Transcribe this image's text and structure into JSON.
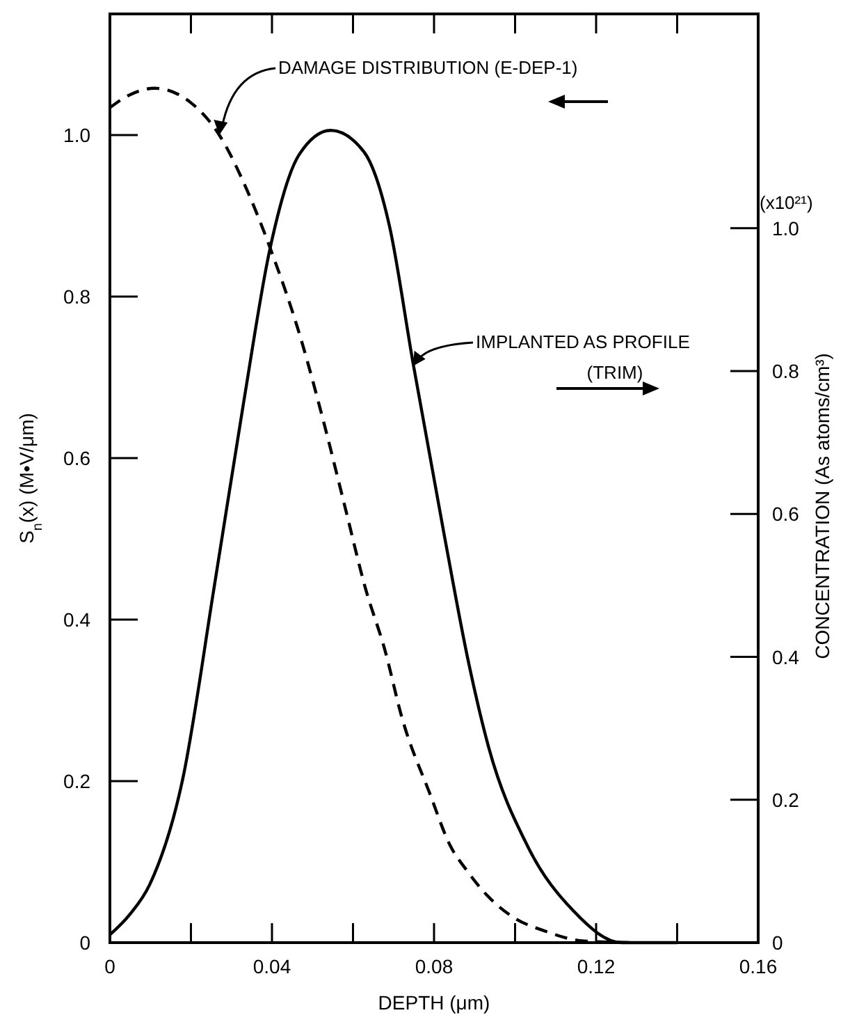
{
  "chart_data": {
    "type": "line",
    "xlabel": "DEPTH (μm)",
    "ylabel": "S$_{n}$(x) (M•V/μm)",
    "y2label": "CONCENTRATION (As atoms/cm³)",
    "annotations": [
      {
        "text": "DAMAGE DISTRIBUTION (E-DEP-1)",
        "x": 0.027,
        "y": 1.0
      },
      {
        "text": "IMPLANTED AS PROFILE",
        "x": 0.0748,
        "y": 0.714
      },
      "(TRIM)",
      "(x10²¹)"
    ],
    "xlim": [
      0,
      0.16
    ],
    "xticks": [
      0,
      {
        "value": 0.02,
        "label": null
      },
      0.04,
      {
        "value": 0.06,
        "label": null
      },
      0.08,
      {
        "value": 0.1,
        "label": null
      },
      0.12,
      {
        "value": 0.14,
        "label": null
      },
      0.16
    ],
    "ylim": [
      0,
      1.15
    ],
    "yticks": [
      0,
      0.2,
      0.4,
      0.6,
      0.8,
      {
        "value": 1,
        "label": "1.0"
      }
    ],
    "y2lim": [
      0,
      1.3
    ],
    "y2ticks": [
      0,
      0.2,
      0.4,
      0.6,
      0.8,
      {
        "value": 1,
        "label": "1.0"
      }
    ],
    "grid": false,
    "series": [
      {
        "color": "#000000",
        "line_style": "dashed",
        "x": [
          0,
          0.005,
          0.011,
          0.02,
          0.027,
          0.034,
          0.04,
          0.047,
          0.053,
          0.058,
          0.063,
          0.068,
          0.072,
          0.079,
          0.084,
          0.088,
          0.093,
          0.1,
          0.107,
          0.117,
          0.13
        ],
        "values": [
          1.034,
          1.05,
          1.058,
          1.04,
          1.0,
          0.93,
          0.854,
          0.75,
          0.64,
          0.54,
          0.44,
          0.36,
          0.28,
          0.184,
          0.12,
          0.09,
          0.059,
          0.03,
          0.015,
          0.002,
          0
        ]
      },
      {
        "color": "#000000",
        "line_style": "solid",
        "axis": "y2",
        "x": [
          0,
          0.005,
          0.0098,
          0.0179,
          0.0258,
          0.033,
          0.0395,
          0.0467,
          0.0545,
          0.0627,
          0.069,
          0.0748,
          0.0826,
          0.0886,
          0.0935,
          0.1031,
          0.1143,
          0.1264,
          0.14
        ],
        "values": [
          0.011,
          0.04,
          0.081,
          0.227,
          0.5,
          0.756,
          0.971,
          1.103,
          1.137,
          1.107,
          1.003,
          0.812,
          0.568,
          0.39,
          0.273,
          0.135,
          0.045,
          0,
          0
        ]
      }
    ]
  }
}
